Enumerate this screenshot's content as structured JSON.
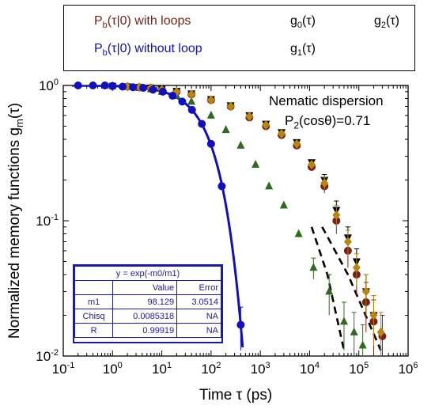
{
  "chart_data": {
    "type": "scatter",
    "xlabel": "Time τ  (ps)",
    "ylabel": "Normalized memory functions g",
    "ylabel_sub": "m",
    "ylabel_tail": "(τ)",
    "xscale": "log",
    "yscale": "log",
    "xlim": [
      0.1,
      1000000
    ],
    "ylim": [
      0.01,
      1
    ],
    "x_ticks": [
      {
        "v": 0.1,
        "m": "10",
        "e": "-1"
      },
      {
        "v": 1,
        "m": "10",
        "e": "0"
      },
      {
        "v": 10,
        "m": "10",
        "e": "1"
      },
      {
        "v": 100,
        "m": "10",
        "e": "2"
      },
      {
        "v": 1000,
        "m": "10",
        "e": "3"
      },
      {
        "v": 10000,
        "m": "10",
        "e": "4"
      },
      {
        "v": 100000,
        "m": "10",
        "e": "5"
      },
      {
        "v": 1000000,
        "m": "10",
        "e": "6"
      }
    ],
    "y_ticks": [
      {
        "v": 0.01,
        "m": "10",
        "e": "-2"
      },
      {
        "v": 0.1,
        "m": "10",
        "e": "-1"
      },
      {
        "v": 1,
        "m": "10",
        "e": "0"
      }
    ],
    "legend": [
      {
        "label_main": "P",
        "label_sub": "b",
        "label_tail": "(τ|0) with loops",
        "marker": "circle",
        "color": "#7a1f16"
      },
      {
        "label_main": "P",
        "label_sub": "b",
        "label_tail": "(τ|0) without loop",
        "marker": "circle-line",
        "color": "#1010c0"
      },
      {
        "label_main": "g",
        "label_sub": "0",
        "label_tail": "(τ)",
        "marker": "triangle-up",
        "color": "#2e6b1e"
      },
      {
        "label_main": "g",
        "label_sub": "1",
        "label_tail": "(τ)",
        "marker": "triangle-down",
        "color": "#000000"
      },
      {
        "label_main": "g",
        "label_sub": "2",
        "label_tail": "(τ)",
        "marker": "diamond",
        "color": "#b8860b"
      }
    ],
    "annotation": {
      "line1": "Nematic dispersion",
      "line2_main": "P",
      "line2_sub": "2",
      "line2_tail": "(cosθ)=0.71"
    },
    "fit_table": {
      "equation": "y = exp(-m0/m1)",
      "header": [
        "",
        "Value",
        "Error"
      ],
      "rows": [
        [
          "m1",
          "98.129",
          "3.0514"
        ],
        [
          "Chisq",
          "0.0085318",
          "NA"
        ],
        [
          "R",
          "0.99919",
          "NA"
        ]
      ]
    },
    "series": [
      {
        "name": "Pb(τ|0) without loop",
        "marker": "circle",
        "color": "#1010c0",
        "x": [
          0.2,
          0.4,
          0.7,
          1.0,
          1.6,
          2.6,
          4.2,
          6.6,
          10.5,
          16.5,
          26,
          41,
          65,
          100,
          165,
          400
        ],
        "y": [
          1.0,
          1.0,
          1.0,
          0.99,
          0.98,
          0.97,
          0.96,
          0.93,
          0.9,
          0.84,
          0.76,
          0.66,
          0.52,
          0.37,
          0.18,
          0.017
        ],
        "yerr": [
          0,
          0,
          0,
          0,
          0,
          0,
          0,
          0,
          0,
          0,
          0,
          0,
          0,
          0,
          0.01,
          0.006
        ]
      },
      {
        "name": "Pb(τ|0) with loops",
        "marker": "circle",
        "color": "#7a1f16",
        "x": [
          1,
          2,
          3.5,
          6,
          10,
          20,
          40,
          100,
          250,
          600,
          1300,
          2700,
          5500,
          11000,
          20000,
          35000,
          60000,
          90000,
          140000,
          200000,
          300000
        ],
        "y": [
          0.99,
          0.98,
          0.97,
          0.96,
          0.93,
          0.9,
          0.86,
          0.78,
          0.7,
          0.58,
          0.5,
          0.43,
          0.36,
          0.25,
          0.18,
          0.1,
          0.06,
          0.04,
          0.025,
          0.018,
          0.014
        ],
        "yerr": [
          0,
          0,
          0,
          0,
          0,
          0,
          0,
          0,
          0,
          0,
          0,
          0,
          0,
          0,
          0.02,
          0.02,
          0.015,
          0.012,
          0.01,
          0.008,
          0.006
        ]
      },
      {
        "name": "g0(τ)",
        "marker": "triangle-up",
        "color": "#2e6b1e",
        "x": [
          1,
          2,
          3.5,
          6,
          10,
          20,
          40,
          100,
          200,
          400,
          800,
          1500,
          3000,
          6000,
          12000,
          25000,
          50000,
          80000,
          120000
        ],
        "y": [
          0.99,
          0.98,
          0.96,
          0.94,
          0.9,
          0.84,
          0.76,
          0.6,
          0.47,
          0.36,
          0.26,
          0.18,
          0.13,
          0.08,
          0.045,
          0.03,
          0.018,
          0.015,
          0.012
        ],
        "yerr": [
          0,
          0,
          0,
          0,
          0,
          0,
          0,
          0,
          0,
          0,
          0,
          0,
          0,
          0,
          0.008,
          0.01,
          0.007,
          0.006,
          0.005
        ]
      },
      {
        "name": "g1(τ)",
        "marker": "triangle-down",
        "color": "#000000",
        "x": [
          1,
          2,
          3.5,
          6,
          10,
          20,
          40,
          100,
          250,
          600,
          1300,
          2700,
          5500,
          11000,
          20000,
          35000,
          60000,
          90000,
          140000,
          200000
        ],
        "y": [
          0.99,
          0.98,
          0.97,
          0.96,
          0.94,
          0.91,
          0.87,
          0.79,
          0.71,
          0.6,
          0.52,
          0.45,
          0.38,
          0.27,
          0.2,
          0.12,
          0.075,
          0.05,
          0.03,
          0.02
        ],
        "yerr": [
          0,
          0,
          0,
          0,
          0,
          0,
          0,
          0,
          0,
          0,
          0,
          0,
          0,
          0,
          0.02,
          0.02,
          0.015,
          0.012,
          0.01,
          0.008
        ]
      },
      {
        "name": "g2(τ)",
        "marker": "diamond",
        "color": "#b8860b",
        "x": [
          1,
          2,
          3.5,
          6,
          10,
          20,
          40,
          100,
          250,
          600,
          1300,
          2700,
          5500,
          11000,
          20000,
          35000,
          60000,
          90000,
          140000,
          200000,
          280000
        ],
        "y": [
          0.99,
          0.98,
          0.97,
          0.96,
          0.93,
          0.9,
          0.86,
          0.78,
          0.7,
          0.59,
          0.51,
          0.44,
          0.37,
          0.26,
          0.19,
          0.11,
          0.07,
          0.045,
          0.03,
          0.02,
          0.015
        ],
        "yerr": [
          0,
          0,
          0,
          0,
          0,
          0,
          0,
          0,
          0,
          0,
          0,
          0,
          0,
          0,
          0.02,
          0.02,
          0.015,
          0.012,
          0.01,
          0.008,
          0.006
        ]
      }
    ],
    "fit_curve": {
      "name": "exp fit",
      "color": "#1010c0",
      "m1": 98.129,
      "x_from": 0.15,
      "x_to": 460
    },
    "dashed_lines": [
      {
        "color": "#000000",
        "x": [
          11000,
          23000,
          50000
        ],
        "y": [
          0.09,
          0.04,
          0.011
        ]
      },
      {
        "color": "#000000",
        "x": [
          18000,
          60000,
          280000
        ],
        "y": [
          0.09,
          0.04,
          0.011
        ]
      }
    ]
  }
}
